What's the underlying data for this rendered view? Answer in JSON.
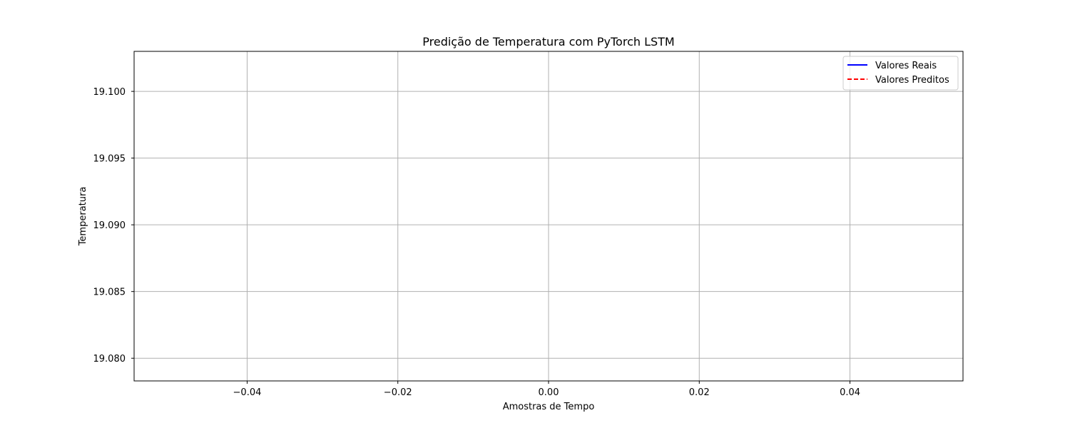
{
  "chart_data": {
    "type": "line",
    "title": "Predição de Temperatura com PyTorch LSTM",
    "xlabel": "Amostras de Tempo",
    "ylabel": "Temperatura",
    "xlim": [
      -0.055,
      0.055
    ],
    "ylim": [
      19.0783,
      19.103
    ],
    "xticks": [
      -0.04,
      -0.02,
      0.0,
      0.02,
      0.04
    ],
    "xtick_labels": [
      "−0.04",
      "−0.02",
      "0.00",
      "0.02",
      "0.04"
    ],
    "yticks": [
      19.08,
      19.085,
      19.09,
      19.095,
      19.1
    ],
    "ytick_labels": [
      "19.080",
      "19.085",
      "19.090",
      "19.095",
      "19.100"
    ],
    "grid": true,
    "legend_position": "top-right",
    "series": [
      {
        "name": "Valores Reais",
        "color": "#0000ff",
        "style": "solid",
        "x": [],
        "y": []
      },
      {
        "name": "Valores Preditos",
        "color": "#ff0000",
        "style": "dashed",
        "x": [],
        "y": []
      }
    ]
  },
  "colors": {
    "grid": "#b0b0b0",
    "axes": "#000000"
  }
}
